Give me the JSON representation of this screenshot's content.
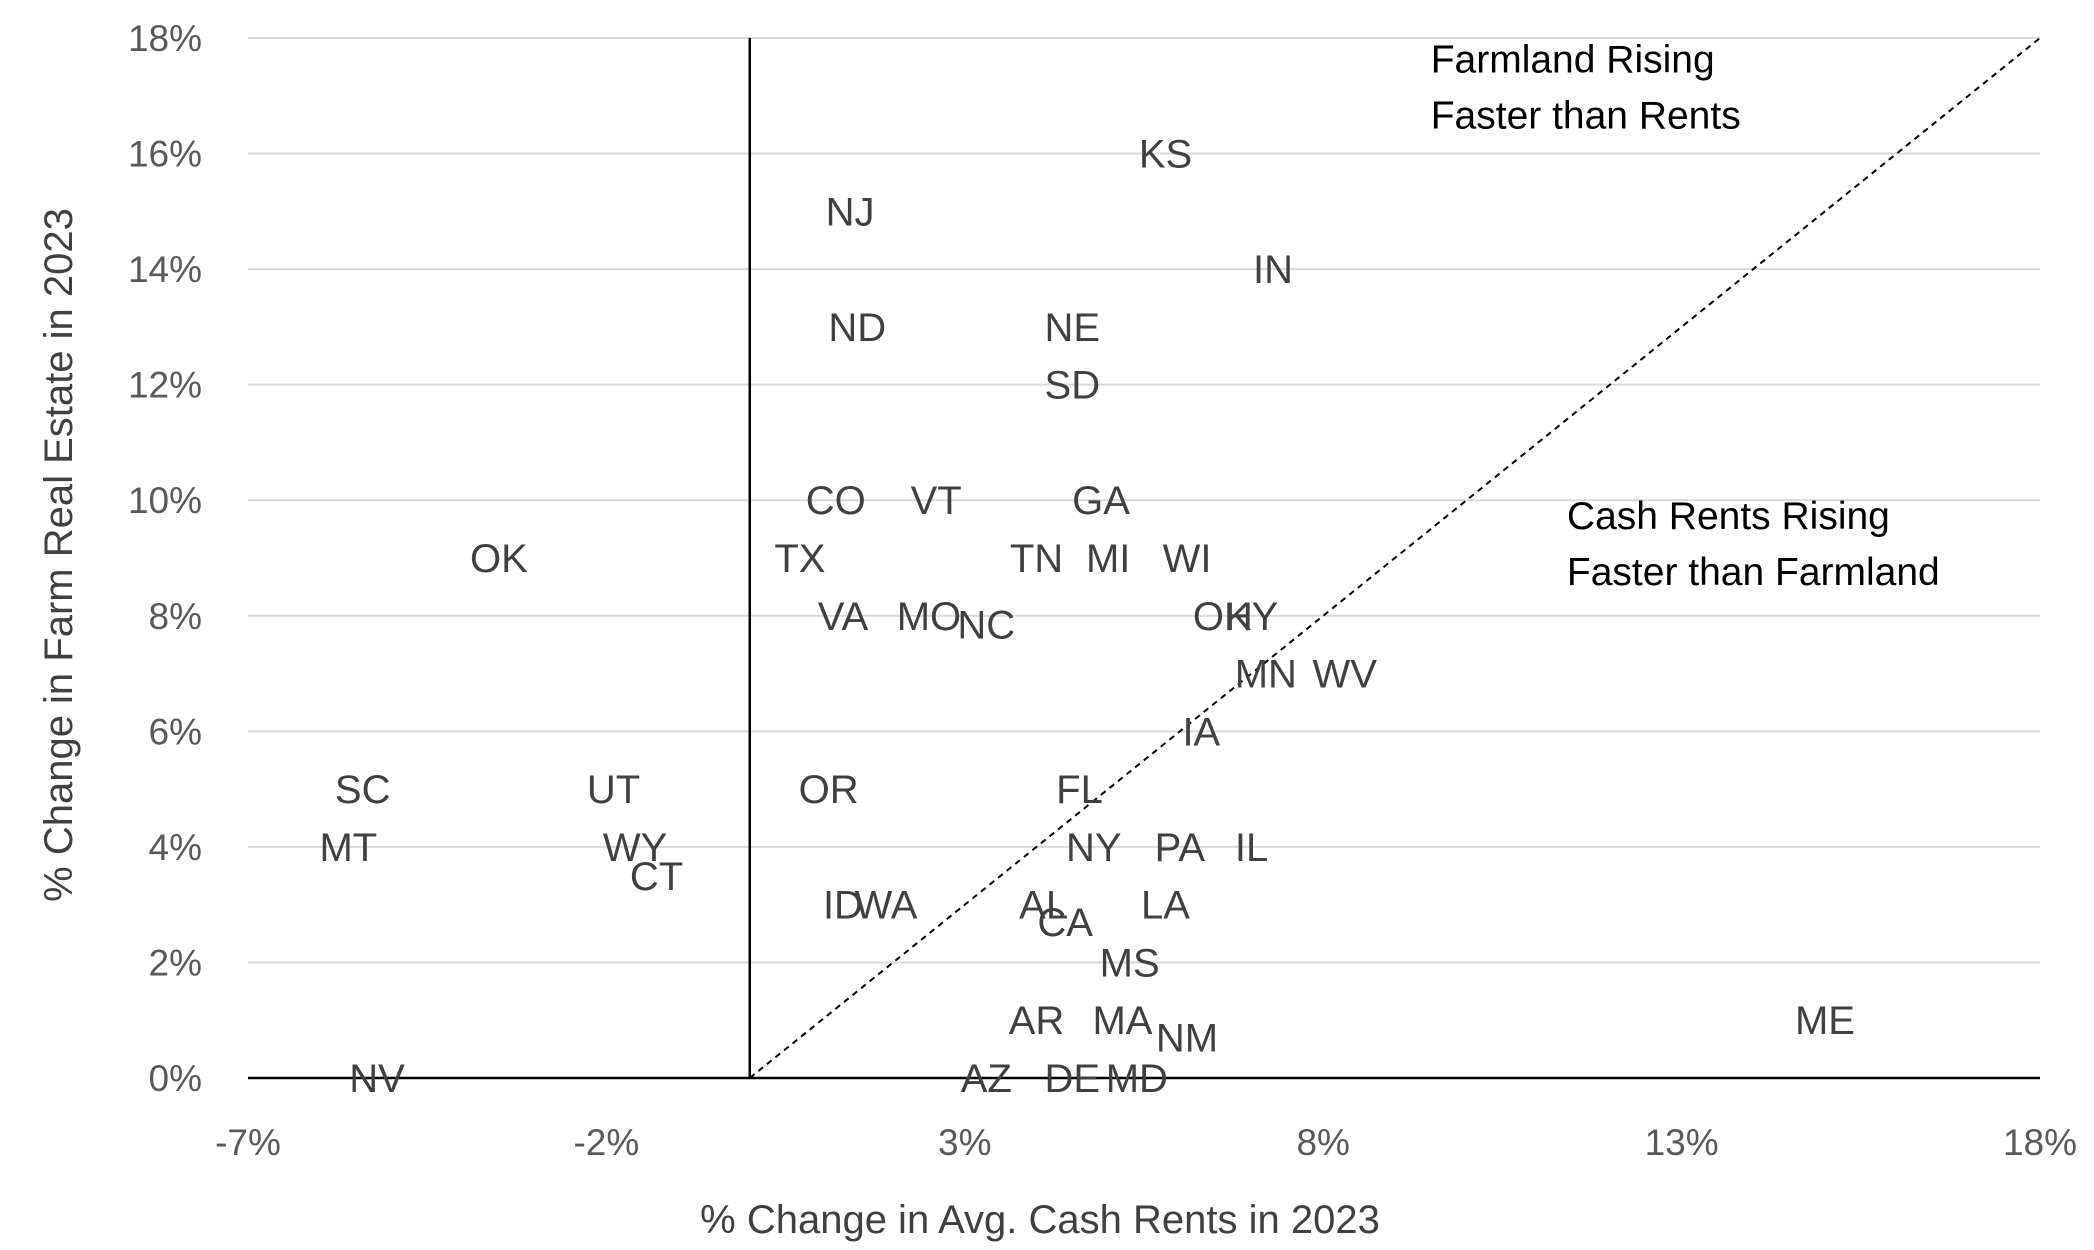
{
  "chart_data": {
    "type": "scatter",
    "xlabel": "% Change in Avg. Cash Rents in 2023",
    "ylabel": "% Change in Farm Real Estate in 2023",
    "xlim": [
      -7,
      18
    ],
    "ylim": [
      0,
      18
    ],
    "x_ticks": [
      {
        "value": -7,
        "label": "-7%"
      },
      {
        "value": -2,
        "label": "-2%"
      },
      {
        "value": 3,
        "label": "3%"
      },
      {
        "value": 8,
        "label": "8%"
      },
      {
        "value": 13,
        "label": "13%"
      },
      {
        "value": 18,
        "label": "18%"
      }
    ],
    "y_ticks": [
      {
        "value": 0,
        "label": "0%"
      },
      {
        "value": 2,
        "label": "2%"
      },
      {
        "value": 4,
        "label": "4%"
      },
      {
        "value": 6,
        "label": "6%"
      },
      {
        "value": 8,
        "label": "8%"
      },
      {
        "value": 10,
        "label": "10%"
      },
      {
        "value": 12,
        "label": "12%"
      },
      {
        "value": 14,
        "label": "14%"
      },
      {
        "value": 16,
        "label": "16%"
      },
      {
        "value": 18,
        "label": "18%"
      }
    ],
    "grid": "horizontal",
    "reference_line": {
      "type": "y=x",
      "style": "dashed",
      "from": 0,
      "to": 18
    },
    "points": [
      {
        "label": "KS",
        "x": 5.8,
        "y": 16
      },
      {
        "label": "NJ",
        "x": 1.4,
        "y": 15
      },
      {
        "label": "IN",
        "x": 7.3,
        "y": 14
      },
      {
        "label": "ND",
        "x": 1.5,
        "y": 13
      },
      {
        "label": "NE",
        "x": 4.5,
        "y": 13
      },
      {
        "label": "SD",
        "x": 4.5,
        "y": 12
      },
      {
        "label": "CO",
        "x": 1.2,
        "y": 10
      },
      {
        "label": "VT",
        "x": 2.6,
        "y": 10
      },
      {
        "label": "GA",
        "x": 4.9,
        "y": 10
      },
      {
        "label": "OK",
        "x": -3.5,
        "y": 9
      },
      {
        "label": "TX",
        "x": 0.7,
        "y": 9
      },
      {
        "label": "TN",
        "x": 4.0,
        "y": 9
      },
      {
        "label": "MI",
        "x": 5.0,
        "y": 9
      },
      {
        "label": "WI",
        "x": 6.1,
        "y": 9
      },
      {
        "label": "VA",
        "x": 1.3,
        "y": 8
      },
      {
        "label": "MO",
        "x": 2.5,
        "y": 8
      },
      {
        "label": "NC",
        "x": 3.3,
        "y": 7.85
      },
      {
        "label": "OH",
        "x": 6.6,
        "y": 8
      },
      {
        "label": "KY",
        "x": 7.0,
        "y": 8
      },
      {
        "label": "MN",
        "x": 7.2,
        "y": 7
      },
      {
        "label": "WV",
        "x": 8.3,
        "y": 7
      },
      {
        "label": "IA",
        "x": 6.3,
        "y": 6
      },
      {
        "label": "SC",
        "x": -5.4,
        "y": 5
      },
      {
        "label": "UT",
        "x": -1.9,
        "y": 5
      },
      {
        "label": "OR",
        "x": 1.1,
        "y": 5
      },
      {
        "label": "FL",
        "x": 4.6,
        "y": 5
      },
      {
        "label": "MT",
        "x": -5.6,
        "y": 4
      },
      {
        "label": "WY",
        "x": -1.6,
        "y": 4
      },
      {
        "label": "CT",
        "x": -1.3,
        "y": 3.5
      },
      {
        "label": "NY",
        "x": 4.8,
        "y": 4
      },
      {
        "label": "PA",
        "x": 6.0,
        "y": 4
      },
      {
        "label": "IL",
        "x": 7.0,
        "y": 4
      },
      {
        "label": "ID",
        "x": 1.3,
        "y": 3
      },
      {
        "label": "WA",
        "x": 1.9,
        "y": 3
      },
      {
        "label": "AL",
        "x": 4.1,
        "y": 3
      },
      {
        "label": "CA",
        "x": 4.4,
        "y": 2.7
      },
      {
        "label": "LA",
        "x": 5.8,
        "y": 3
      },
      {
        "label": "MS",
        "x": 5.3,
        "y": 2
      },
      {
        "label": "AR",
        "x": 4.0,
        "y": 1
      },
      {
        "label": "MA",
        "x": 5.2,
        "y": 1
      },
      {
        "label": "NM",
        "x": 6.1,
        "y": 0.7
      },
      {
        "label": "ME",
        "x": 15.0,
        "y": 1
      },
      {
        "label": "NV",
        "x": -5.2,
        "y": 0
      },
      {
        "label": "AZ",
        "x": 3.3,
        "y": 0
      },
      {
        "label": "DE",
        "x": 4.5,
        "y": 0
      },
      {
        "label": "MD",
        "x": 5.4,
        "y": 0
      }
    ],
    "annotations": [
      {
        "lines": [
          "Farmland Rising",
          "Faster than Rents"
        ],
        "x": 9.5,
        "y": 17.4
      },
      {
        "lines": [
          "Cash Rents Rising",
          "Faster than Farmland"
        ],
        "x": 11.4,
        "y": 9.5
      }
    ]
  }
}
